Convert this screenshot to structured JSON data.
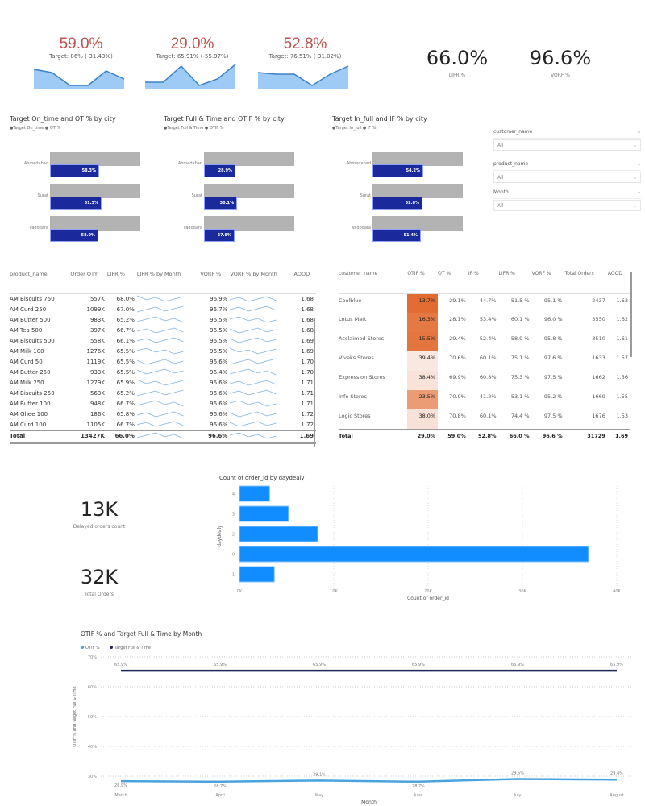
{
  "kpis": [
    {
      "value": "59.0%",
      "target": "Target: 86% (-31.43%)",
      "spark": [
        6,
        5,
        1,
        1,
        5.5,
        3
      ]
    },
    {
      "value": "29.0%",
      "target": "Target: 65.91% (-55.97%)",
      "spark": [
        2,
        2,
        7,
        1,
        3,
        7.5
      ]
    },
    {
      "value": "52.8%",
      "target": "Target: 76.51% (-31.02%)",
      "spark": [
        5,
        4.5,
        4.5,
        1,
        4.5,
        7
      ]
    }
  ],
  "cards": [
    {
      "value": "66.0%",
      "label": "LIFR %"
    },
    {
      "value": "96.6%",
      "label": "VORF %"
    },
    {
      "value": "13K",
      "label": "Delayed orders count"
    },
    {
      "value": "32K",
      "label": "Total Orders"
    }
  ],
  "bullets": [
    {
      "title": "Target On_time and OT % by city",
      "legend": "●Target On_time ● OT %",
      "rows": [
        {
          "city": "Ahmedabad",
          "target": 86,
          "actual": 58.3,
          "label": "58.3%"
        },
        {
          "city": "Surat",
          "target": 86,
          "actual": 61.3,
          "label": "61.3%"
        },
        {
          "city": "Vadodara",
          "target": 86,
          "actual": 58.0,
          "label": "58.0%"
        }
      ]
    },
    {
      "title": "Target Full & Time and OTIF % by city",
      "legend": "●Target Full & Time ● OTIF %",
      "rows": [
        {
          "city": "Ahmedabad",
          "target": 65.9,
          "actual": 28.9,
          "label": "28.9%"
        },
        {
          "city": "Surat",
          "target": 65.9,
          "actual": 30.1,
          "label": "30.1%"
        },
        {
          "city": "Vadodara",
          "target": 65.9,
          "actual": 27.8,
          "label": "27.8%"
        }
      ]
    },
    {
      "title": "Target In_full and IF % by city",
      "legend": "●Target In_full ● IF %",
      "rows": [
        {
          "city": "Ahmedabad",
          "target": 76.5,
          "actual": 54.2,
          "label": "54.2%"
        },
        {
          "city": "Surat",
          "target": 76.5,
          "actual": 52.8,
          "label": "52.8%"
        },
        {
          "city": "Vadodara",
          "target": 76.5,
          "actual": 51.4,
          "label": "51.4%"
        }
      ]
    }
  ],
  "slicers": [
    {
      "label": "customer_name",
      "value": "All"
    },
    {
      "label": "product_name",
      "value": "All"
    },
    {
      "label": "Month",
      "value": "All"
    }
  ],
  "product_table": {
    "headers": [
      "product_name",
      "Order QTY",
      "LIFR %",
      "LIFR % by Month",
      "VORF %",
      "VORF % by Month",
      "AOOD"
    ],
    "rows": [
      [
        "AM Biscuits 750",
        "557K",
        "68.0%",
        "96.9%",
        "1.68"
      ],
      [
        "AM Curd 250",
        "1099K",
        "67.0%",
        "96.7%",
        "1.68"
      ],
      [
        "AM Butter 500",
        "983K",
        "65.2%",
        "96.5%",
        "1.68"
      ],
      [
        "AM Tea 500",
        "397K",
        "66.7%",
        "96.5%",
        "1.68"
      ],
      [
        "AM Biscuits 500",
        "558K",
        "66.1%",
        "96.5%",
        "1.69"
      ],
      [
        "AM Milk 100",
        "1276K",
        "65.5%",
        "96.5%",
        "1.69"
      ],
      [
        "AM Curd 50",
        "1119K",
        "65.5%",
        "96.6%",
        "1.70"
      ],
      [
        "AM Butter 250",
        "933K",
        "65.5%",
        "96.4%",
        "1.70"
      ],
      [
        "AM Milk 250",
        "1279K",
        "65.9%",
        "96.6%",
        "1.71"
      ],
      [
        "AM Biscuits 250",
        "563K",
        "65.2%",
        "96.6%",
        "1.71"
      ],
      [
        "AM Butter 100",
        "948K",
        "66.7%",
        "96.6%",
        "1.71"
      ],
      [
        "AM Ghee 100",
        "186K",
        "65.8%",
        "96.6%",
        "1.72"
      ],
      [
        "AM Curd 100",
        "1105K",
        "66.7%",
        "96.6%",
        "1.72"
      ]
    ],
    "total": [
      "Total",
      "13427K",
      "66.0%",
      "96.6%",
      "1.69"
    ]
  },
  "customer_table": {
    "headers": [
      "customer_name",
      "OTIF %",
      "OT %",
      "IF %",
      "LIFR %",
      "VORF %",
      "Total Orders",
      "AOOD"
    ],
    "rows": [
      [
        "Coolblue",
        "13.7%",
        "29.1%",
        "44.7%",
        "51.5 %",
        "95.1 %",
        "2437",
        "1.63"
      ],
      [
        "Lotus Mart",
        "16.3%",
        "28.1%",
        "53.4%",
        "60.1 %",
        "96.0 %",
        "3550",
        "1.62"
      ],
      [
        "Acclaimed Stores",
        "15.5%",
        "29.4%",
        "52.4%",
        "58.9 %",
        "95.8 %",
        "3510",
        "1.61"
      ],
      [
        "Viveks Stores",
        "39.4%",
        "70.6%",
        "60.1%",
        "75.1 %",
        "97.6 %",
        "1633",
        "1.57"
      ],
      [
        "Expression Stores",
        "38.4%",
        "69.9%",
        "60.8%",
        "75.3 %",
        "97.5 %",
        "1662",
        "1.56"
      ],
      [
        "Info Stores",
        "23.5%",
        "70.9%",
        "41.2%",
        "53.1 %",
        "95.2 %",
        "1669",
        "1.55"
      ],
      [
        "Logic Stores",
        "38.0%",
        "70.8%",
        "60.1%",
        "74.4 %",
        "97.5 %",
        "1676",
        "1.53"
      ]
    ],
    "total": [
      "Total",
      "29.0%",
      "59.0%",
      "52.8%",
      "66.0 %",
      "96.6 %",
      "31729",
      "1.69"
    ]
  },
  "chart_data": [
    {
      "type": "bar",
      "title": "Count of order_id by daydealy",
      "xlabel": "Count of order_id",
      "ylabel": "daydealy",
      "categories": [
        "4",
        "3",
        "2",
        "0",
        "1"
      ],
      "values": [
        3200,
        5200,
        8300,
        37000,
        3700
      ],
      "xlim": [
        0,
        40000
      ],
      "xticks": [
        "0K",
        "10K",
        "20K",
        "30K",
        "40K"
      ],
      "grid": true
    },
    {
      "type": "line",
      "title": "OTIF % and Target Full & Time by Month",
      "xlabel": "Month",
      "ylabel": "OTIF % and Target Full & Time",
      "categories": [
        "March",
        "April",
        "May",
        "June",
        "July",
        "August"
      ],
      "series": [
        {
          "name": "OTIF %",
          "values": [
            28.9,
            28.7,
            29.1,
            28.7,
            29.6,
            29.4
          ],
          "labels": [
            "28.9%",
            "28.7%",
            "29.1%",
            "28.7%",
            "29.6%",
            "29.4%"
          ],
          "color": "#4aa3df"
        },
        {
          "name": "Target Full & Time",
          "values": [
            65.9,
            65.9,
            65.9,
            65.9,
            65.9,
            65.9
          ],
          "labels": [
            "65.9%",
            "65.9%",
            "65.9%",
            "65.9%",
            "65.9%",
            "65.9%"
          ],
          "color": "#1f2a5c"
        }
      ],
      "ylim": [
        30,
        70
      ],
      "yticks": [
        "70%",
        "60%",
        "50%",
        "40%",
        "30%"
      ],
      "legend": "top-left",
      "grid": true
    }
  ],
  "colors": {
    "kpi_red": "#c0504d",
    "bar_blue": "#118dff",
    "bullet_navy": "#1a2a9c",
    "heat_dark": "#e2692e"
  }
}
